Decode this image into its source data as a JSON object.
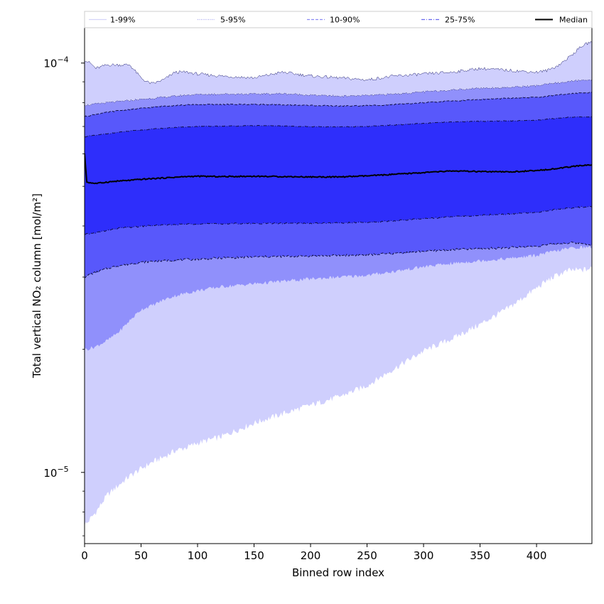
{
  "chart_data": {
    "type": "area",
    "xlabel": "Binned row index",
    "ylabel": "Total vertical NO₂ column [mol/m²]",
    "yscale": "log",
    "xlim": [
      0,
      449
    ],
    "ylim": [
      6.7e-06,
      0.000122
    ],
    "x_ticks": [
      0,
      50,
      100,
      150,
      200,
      250,
      300,
      350,
      400
    ],
    "y_ticks": [
      {
        "value": 1e-05,
        "base": "10",
        "exp": "−5"
      },
      {
        "value": 0.0001,
        "base": "10",
        "exp": "−4"
      }
    ],
    "legend": {
      "placement": "top",
      "entries": [
        {
          "label": "1-99%",
          "style": "solid",
          "color": "#d4d4f8"
        },
        {
          "label": "5-95%",
          "style": "dotted",
          "color": "#a8a8f0"
        },
        {
          "label": "10-90%",
          "style": "dashed",
          "color": "#8c8cf5"
        },
        {
          "label": "25-75%",
          "style": "dashdot",
          "color": "#6a6af0"
        },
        {
          "label": "Median",
          "style": "solid",
          "color": "#000000"
        }
      ]
    },
    "x": [
      0,
      2,
      5,
      10,
      20,
      30,
      40,
      50,
      55,
      60,
      70,
      80,
      90,
      100,
      120,
      150,
      175,
      200,
      225,
      250,
      275,
      300,
      325,
      350,
      375,
      400,
      410,
      420,
      430,
      440,
      449
    ],
    "series": [
      {
        "name": "1-99%",
        "band": "outer",
        "color": "#cfcffd",
        "lower": [
          7.5e-06,
          7.5e-06,
          7.7e-06,
          8e-06,
          8.8e-06,
          9.3e-06,
          9.8e-06,
          1.02e-05,
          1.04e-05,
          1.06e-05,
          1.09e-05,
          1.13e-05,
          1.15e-05,
          1.18e-05,
          1.22e-05,
          1.32e-05,
          1.39e-05,
          1.46e-05,
          1.53e-05,
          1.63e-05,
          1.8e-05,
          1.98e-05,
          2.12e-05,
          2.3e-05,
          2.52e-05,
          2.82e-05,
          2.95e-05,
          3.05e-05,
          3.12e-05,
          3.12e-05,
          3.15e-05
        ],
        "upper": [
          0.000102,
          0.000101,
          0.0001,
          9.7e-05,
          9.9e-05,
          9.9e-05,
          9.9e-05,
          9.2e-05,
          9e-05,
          8.9e-05,
          9.1e-05,
          9.5e-05,
          9.5e-05,
          9.4e-05,
          9.3e-05,
          9.2e-05,
          9.5e-05,
          9.3e-05,
          9.2e-05,
          9.1e-05,
          9.3e-05,
          9.4e-05,
          9.5e-05,
          9.7e-05,
          9.6e-05,
          9.5e-05,
          9.6e-05,
          9.9e-05,
          0.000104,
          0.00011,
          0.000113
        ]
      },
      {
        "name": "5-95%",
        "band": "p5_95",
        "color": "#9090fb",
        "lower": [
          2e-05,
          2e-05,
          2.01e-05,
          2.03e-05,
          2.1e-05,
          2.2e-05,
          2.35e-05,
          2.5e-05,
          2.53e-05,
          2.56e-05,
          2.64e-05,
          2.7e-05,
          2.74e-05,
          2.78e-05,
          2.84e-05,
          2.89e-05,
          2.93e-05,
          2.97e-05,
          3e-05,
          3.03e-05,
          3.1e-05,
          3.18e-05,
          3.24e-05,
          3.29e-05,
          3.33e-05,
          3.39e-05,
          3.44e-05,
          3.49e-05,
          3.53e-05,
          3.55e-05,
          3.55e-05
        ],
        "upper": [
          7.9e-05,
          7.9e-05,
          7.9e-05,
          7.95e-05,
          8e-05,
          8.05e-05,
          8.1e-05,
          8.15e-05,
          8.18e-05,
          8.2e-05,
          8.25e-05,
          8.3e-05,
          8.35e-05,
          8.38e-05,
          8.4e-05,
          8.4e-05,
          8.42e-05,
          8.35e-05,
          8.3e-05,
          8.33e-05,
          8.4e-05,
          8.5e-05,
          8.6e-05,
          8.68e-05,
          8.72e-05,
          8.8e-05,
          8.88e-05,
          8.95e-05,
          9.02e-05,
          9.08e-05,
          9.1e-05
        ]
      },
      {
        "name": "10-90%",
        "band": "p10_90",
        "color": "#5858fb",
        "lower": [
          3e-05,
          3.02e-05,
          3.05e-05,
          3.08e-05,
          3.15e-05,
          3.2e-05,
          3.23e-05,
          3.26e-05,
          3.27e-05,
          3.28e-05,
          3.29e-05,
          3.3e-05,
          3.31e-05,
          3.32e-05,
          3.34e-05,
          3.36e-05,
          3.37e-05,
          3.38e-05,
          3.39e-05,
          3.4e-05,
          3.43e-05,
          3.47e-05,
          3.5e-05,
          3.52e-05,
          3.54e-05,
          3.57e-05,
          3.6e-05,
          3.62e-05,
          3.64e-05,
          3.63e-05,
          3.6e-05
        ],
        "upper": [
          7.4e-05,
          7.42e-05,
          7.45e-05,
          7.5e-05,
          7.58e-05,
          7.65e-05,
          7.7e-05,
          7.75e-05,
          7.77e-05,
          7.8e-05,
          7.85e-05,
          7.88e-05,
          7.9e-05,
          7.92e-05,
          7.92e-05,
          7.93e-05,
          7.9e-05,
          7.88e-05,
          7.85e-05,
          7.87e-05,
          7.92e-05,
          8e-05,
          8.08e-05,
          8.15e-05,
          8.2e-05,
          8.25e-05,
          8.3e-05,
          8.36e-05,
          8.42e-05,
          8.46e-05,
          8.48e-05
        ]
      },
      {
        "name": "25-75%",
        "band": "p25_75",
        "color": "#2e2efb",
        "lower": [
          3.8e-05,
          3.82e-05,
          3.83e-05,
          3.85e-05,
          3.9e-05,
          3.95e-05,
          3.97e-05,
          3.99e-05,
          4e-05,
          4.01e-05,
          4.02e-05,
          4.03e-05,
          4.04e-05,
          4.05e-05,
          4.05e-05,
          4.06e-05,
          4.06e-05,
          4.06e-05,
          4.07e-05,
          4.08e-05,
          4.12e-05,
          4.17e-05,
          4.21e-05,
          4.25e-05,
          4.28e-05,
          4.32e-05,
          4.36e-05,
          4.4e-05,
          4.43e-05,
          4.45e-05,
          4.46e-05
        ],
        "upper": [
          6.6e-05,
          6.62e-05,
          6.64e-05,
          6.66e-05,
          6.72e-05,
          6.77e-05,
          6.82e-05,
          6.86e-05,
          6.88e-05,
          6.9e-05,
          6.93e-05,
          6.96e-05,
          6.98e-05,
          7e-05,
          7.01e-05,
          7.03e-05,
          7.02e-05,
          6.99e-05,
          6.98e-05,
          7e-05,
          7.06e-05,
          7.12e-05,
          7.18e-05,
          7.21e-05,
          7.22e-05,
          7.25e-05,
          7.3e-05,
          7.34e-05,
          7.38e-05,
          7.38e-05,
          7.38e-05
        ]
      }
    ],
    "median": {
      "name": "Median",
      "color": "#000000",
      "values": [
        6e-05,
        5.12e-05,
        5.1e-05,
        5.08e-05,
        5.12e-05,
        5.15e-05,
        5.17e-05,
        5.2e-05,
        5.21e-05,
        5.22e-05,
        5.24e-05,
        5.26e-05,
        5.28e-05,
        5.29e-05,
        5.28e-05,
        5.29e-05,
        5.28e-05,
        5.27e-05,
        5.27e-05,
        5.3e-05,
        5.35e-05,
        5.4e-05,
        5.45e-05,
        5.43e-05,
        5.42e-05,
        5.46e-05,
        5.5e-05,
        5.53e-05,
        5.58e-05,
        5.62e-05,
        5.64e-05
      ]
    }
  }
}
